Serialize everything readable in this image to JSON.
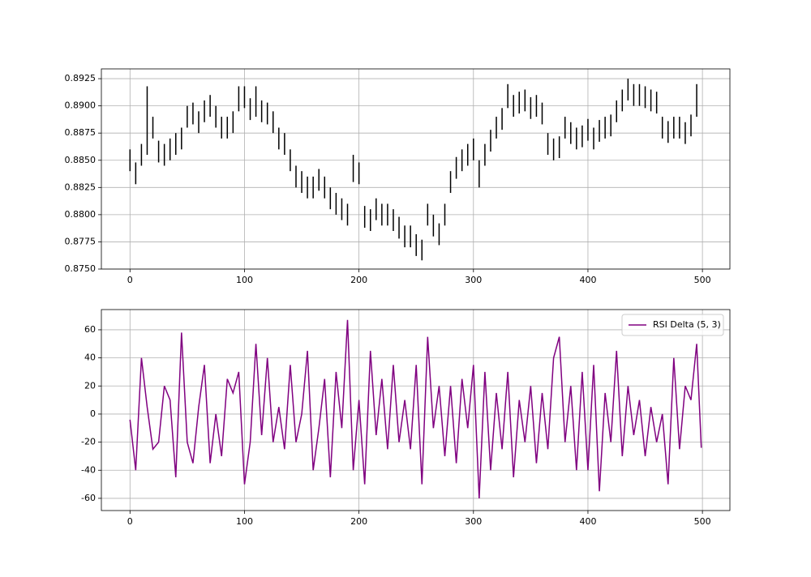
{
  "chart_data": [
    {
      "type": "range",
      "color": "#000000",
      "grid": true,
      "xlim": [
        -25,
        524
      ],
      "xticks": [
        0,
        100,
        200,
        300,
        400,
        500
      ],
      "ylim": [
        0.875,
        0.8934
      ],
      "yticks": [
        {
          "value": 0.875,
          "label": "0.8750"
        },
        {
          "value": 0.8775,
          "label": "0.8775"
        },
        {
          "value": 0.88,
          "label": "0.8800"
        },
        {
          "value": 0.8825,
          "label": "0.8825"
        },
        {
          "value": 0.885,
          "label": "0.8850"
        },
        {
          "value": 0.8875,
          "label": "0.8875"
        },
        {
          "value": 0.89,
          "label": "0.8900"
        },
        {
          "value": 0.8925,
          "label": "0.8925"
        }
      ],
      "x": [
        0,
        5,
        10,
        15,
        20,
        25,
        30,
        35,
        40,
        45,
        50,
        55,
        60,
        65,
        70,
        75,
        80,
        85,
        90,
        95,
        100,
        105,
        110,
        115,
        120,
        125,
        130,
        135,
        140,
        145,
        150,
        155,
        160,
        165,
        170,
        175,
        180,
        185,
        190,
        195,
        200,
        205,
        210,
        215,
        220,
        225,
        230,
        235,
        240,
        245,
        250,
        255,
        260,
        265,
        270,
        275,
        280,
        285,
        290,
        295,
        300,
        305,
        310,
        315,
        320,
        325,
        330,
        335,
        340,
        345,
        350,
        355,
        360,
        365,
        370,
        375,
        380,
        385,
        390,
        395,
        400,
        405,
        410,
        415,
        420,
        425,
        430,
        435,
        440,
        445,
        450,
        455,
        460,
        465,
        470,
        475,
        480,
        485,
        490,
        495
      ],
      "high": [
        0.886,
        0.8848,
        0.8865,
        0.8918,
        0.889,
        0.8868,
        0.8865,
        0.887,
        0.8875,
        0.888,
        0.89,
        0.8903,
        0.8895,
        0.8905,
        0.891,
        0.89,
        0.889,
        0.889,
        0.8895,
        0.8918,
        0.8918,
        0.8907,
        0.8918,
        0.8905,
        0.8903,
        0.8895,
        0.888,
        0.8875,
        0.886,
        0.8845,
        0.884,
        0.8835,
        0.8835,
        0.8842,
        0.8835,
        0.8825,
        0.882,
        0.8815,
        0.881,
        0.8855,
        0.8848,
        0.8808,
        0.8805,
        0.8815,
        0.881,
        0.881,
        0.8805,
        0.8798,
        0.879,
        0.879,
        0.8782,
        0.8777,
        0.881,
        0.88,
        0.8792,
        0.881,
        0.884,
        0.8853,
        0.886,
        0.8865,
        0.887,
        0.885,
        0.8865,
        0.8878,
        0.889,
        0.8898,
        0.892,
        0.891,
        0.8913,
        0.8915,
        0.8908,
        0.891,
        0.8903,
        0.8875,
        0.887,
        0.8872,
        0.889,
        0.8885,
        0.888,
        0.8882,
        0.8888,
        0.888,
        0.8887,
        0.889,
        0.8892,
        0.8905,
        0.8915,
        0.8925,
        0.892,
        0.892,
        0.8918,
        0.8915,
        0.8913,
        0.889,
        0.8886,
        0.889,
        0.889,
        0.8885,
        0.8892,
        0.892
      ],
      "low": [
        0.884,
        0.8828,
        0.8845,
        0.8855,
        0.887,
        0.8848,
        0.8845,
        0.885,
        0.8855,
        0.886,
        0.888,
        0.8883,
        0.8875,
        0.8885,
        0.889,
        0.888,
        0.887,
        0.887,
        0.8875,
        0.8895,
        0.8898,
        0.8887,
        0.889,
        0.8885,
        0.8883,
        0.8875,
        0.886,
        0.8855,
        0.884,
        0.8825,
        0.882,
        0.8815,
        0.8815,
        0.8822,
        0.8815,
        0.8805,
        0.88,
        0.8795,
        0.879,
        0.883,
        0.8828,
        0.8788,
        0.8785,
        0.8795,
        0.879,
        0.879,
        0.8785,
        0.8778,
        0.877,
        0.877,
        0.8762,
        0.8758,
        0.879,
        0.878,
        0.8772,
        0.879,
        0.882,
        0.8833,
        0.884,
        0.8845,
        0.885,
        0.8825,
        0.8845,
        0.8858,
        0.887,
        0.8878,
        0.8898,
        0.889,
        0.8893,
        0.8895,
        0.8888,
        0.889,
        0.8883,
        0.8855,
        0.885,
        0.8852,
        0.887,
        0.8865,
        0.886,
        0.8862,
        0.8868,
        0.886,
        0.8867,
        0.887,
        0.8872,
        0.8885,
        0.8895,
        0.8905,
        0.89,
        0.89,
        0.8898,
        0.8895,
        0.8893,
        0.887,
        0.8866,
        0.887,
        0.887,
        0.8865,
        0.8872,
        0.889
      ]
    },
    {
      "type": "line",
      "grid": true,
      "legend": "upper right",
      "xlim": [
        -25,
        524
      ],
      "xticks": [
        0,
        100,
        200,
        300,
        400,
        500
      ],
      "ylim": [
        -68.7,
        74.4
      ],
      "yticks": [
        -60,
        -40,
        -20,
        0,
        20,
        40,
        60
      ],
      "x": [
        0,
        5,
        10,
        15,
        20,
        25,
        30,
        35,
        40,
        45,
        50,
        55,
        60,
        65,
        70,
        75,
        80,
        85,
        90,
        95,
        100,
        105,
        110,
        115,
        120,
        125,
        130,
        135,
        140,
        145,
        150,
        155,
        160,
        165,
        170,
        175,
        180,
        185,
        190,
        195,
        200,
        205,
        210,
        215,
        220,
        225,
        230,
        235,
        240,
        245,
        250,
        255,
        260,
        265,
        270,
        275,
        280,
        285,
        290,
        295,
        300,
        305,
        310,
        315,
        320,
        325,
        330,
        335,
        340,
        345,
        350,
        355,
        360,
        365,
        370,
        375,
        380,
        385,
        390,
        395,
        400,
        405,
        410,
        415,
        420,
        425,
        430,
        435,
        440,
        445,
        450,
        455,
        460,
        465,
        470,
        475,
        480,
        485,
        490,
        495,
        499
      ],
      "series": [
        {
          "name": "RSI Delta (5, 3)",
          "color": "#800080",
          "values": [
            -4,
            -40,
            40,
            5,
            -25,
            -20,
            20,
            10,
            -45,
            58,
            -20,
            -35,
            5,
            35,
            -35,
            0,
            -30,
            25,
            15,
            30,
            -50,
            -20,
            50,
            -15,
            40,
            -20,
            5,
            -25,
            35,
            -20,
            0,
            45,
            -40,
            -10,
            25,
            -45,
            30,
            -10,
            67,
            -40,
            10,
            -50,
            45,
            -15,
            25,
            -25,
            35,
            -20,
            10,
            -25,
            35,
            -50,
            55,
            -10,
            20,
            -30,
            20,
            -35,
            25,
            -10,
            35,
            -60,
            30,
            -40,
            15,
            -25,
            30,
            -45,
            10,
            -20,
            20,
            -35,
            15,
            -25,
            40,
            55,
            -20,
            20,
            -40,
            30,
            -40,
            35,
            -55,
            15,
            -20,
            45,
            -30,
            20,
            -15,
            10,
            -30,
            5,
            -20,
            0,
            -50,
            40,
            -25,
            20,
            10,
            50,
            -24
          ]
        }
      ]
    }
  ]
}
